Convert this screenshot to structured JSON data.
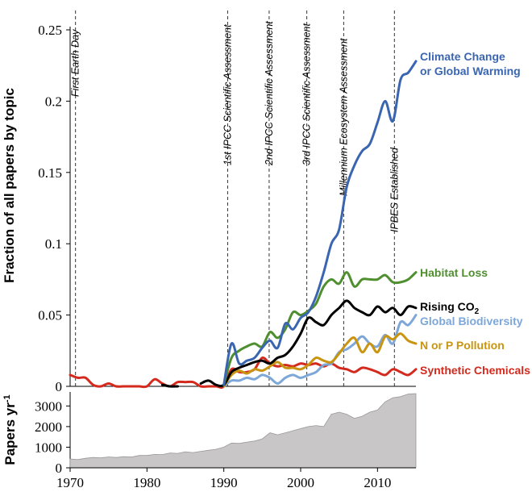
{
  "chart_data": [
    {
      "type": "line",
      "ylabel": "Fraction of all papers by topic",
      "xlim": [
        1970,
        2015
      ],
      "ylim": [
        0,
        0.25
      ],
      "yticks": [
        "0",
        "0.05",
        "0.1",
        "0.15",
        "0.2",
        "0.25"
      ],
      "grid": false,
      "events": [
        {
          "label": "First Earth Day",
          "year": 1970.7
        },
        {
          "label": "1st IPCC Scientific Assessment",
          "year": 1990.5
        },
        {
          "label": "2nd IPCC Scientific Assessment",
          "year": 1995.9
        },
        {
          "label": "3rd IPCC Scientific Assessment",
          "year": 2000.8
        },
        {
          "label": "Millennium Ecosystem Assessment",
          "year": 2005.6
        },
        {
          "label": "IPBES Established",
          "year": 2012.2
        }
      ],
      "x": [
        1990,
        1991,
        1992,
        1993,
        1994,
        1995,
        1996,
        1997,
        1998,
        1999,
        2000,
        2001,
        2002,
        2003,
        2004,
        2005,
        2006,
        2007,
        2008,
        2009,
        2010,
        2011,
        2012,
        2013,
        2014,
        2015
      ],
      "series": [
        {
          "name": "Climate Change or Global Warming",
          "label_lines": [
            "Climate Change",
            "or Global Warming"
          ],
          "color": "#3a65b0",
          "values": [
            0.001,
            0.03,
            0.016,
            0.018,
            0.02,
            0.027,
            0.032,
            0.027,
            0.044,
            0.04,
            0.048,
            0.052,
            0.063,
            0.08,
            0.1,
            0.11,
            0.14,
            0.155,
            0.165,
            0.17,
            0.185,
            0.2,
            0.186,
            0.215,
            0.22,
            0.228
          ]
        },
        {
          "name": "Habitat Loss",
          "color": "#4f8f2f",
          "values": [
            0.001,
            0.02,
            0.025,
            0.028,
            0.03,
            0.028,
            0.038,
            0.034,
            0.04,
            0.052,
            0.05,
            0.053,
            0.058,
            0.07,
            0.075,
            0.072,
            0.08,
            0.07,
            0.075,
            0.075,
            0.075,
            0.078,
            0.073,
            0.073,
            0.075,
            0.08
          ]
        },
        {
          "name": "Rising CO₂",
          "label_main": "Rising CO",
          "label_sub": "2",
          "color": "#000000",
          "x": [
            1982,
            1983,
            1984,
            1987,
            1988,
            1989,
            1990,
            1991,
            1992,
            1993,
            1994,
            1995,
            1996,
            1997,
            1998,
            1999,
            2000,
            2001,
            2002,
            2003,
            2004,
            2005,
            2006,
            2007,
            2008,
            2009,
            2010,
            2011,
            2012,
            2013,
            2014,
            2015
          ],
          "values": [
            0.001,
            0.0,
            0.0,
            0.002,
            0.004,
            0.001,
            0.001,
            0.01,
            0.013,
            0.015,
            0.017,
            0.018,
            0.016,
            0.02,
            0.022,
            0.028,
            0.037,
            0.048,
            0.045,
            0.043,
            0.05,
            0.055,
            0.06,
            0.055,
            0.052,
            0.05,
            0.056,
            0.052,
            0.055,
            0.05,
            0.056,
            0.055
          ]
        },
        {
          "name": "Global Biodiversity",
          "color": "#7da7d8",
          "values": [
            0.0,
            0.004,
            0.004,
            0.006,
            0.005,
            0.008,
            0.006,
            0.002,
            0.006,
            0.008,
            0.006,
            0.008,
            0.01,
            0.015,
            0.016,
            0.024,
            0.026,
            0.03,
            0.035,
            0.03,
            0.028,
            0.036,
            0.03,
            0.045,
            0.043,
            0.05
          ]
        },
        {
          "name": "N or P Pollution",
          "color": "#c9940f",
          "values": [
            0.0,
            0.008,
            0.011,
            0.009,
            0.012,
            0.011,
            0.014,
            0.017,
            0.013,
            0.013,
            0.012,
            0.015,
            0.02,
            0.018,
            0.017,
            0.023,
            0.03,
            0.034,
            0.024,
            0.03,
            0.024,
            0.035,
            0.033,
            0.037,
            0.032,
            0.03
          ]
        },
        {
          "name": "Synthetic Chemicals",
          "color": "#d42a1e",
          "x": [
            1970,
            1971,
            1972,
            1973,
            1974,
            1975,
            1976,
            1977,
            1978,
            1979,
            1980,
            1981,
            1982,
            1983,
            1984,
            1985,
            1986,
            1987,
            1988,
            1989,
            1990,
            1991,
            1992,
            1993,
            1994,
            1995,
            1996,
            1997,
            1998,
            1999,
            2000,
            2001,
            2002,
            2003,
            2004,
            2005,
            2006,
            2007,
            2008,
            2009,
            2010,
            2011,
            2012,
            2013,
            2014,
            2015
          ],
          "values": [
            0.008,
            0.006,
            0.006,
            0.001,
            0.0,
            0.002,
            0.0,
            0.0,
            0.0,
            0.0,
            0.0,
            0.005,
            0.002,
            0.0,
            0.003,
            0.003,
            0.003,
            0.0,
            0.0,
            0.0,
            0.0,
            0.012,
            0.01,
            0.01,
            0.012,
            0.02,
            0.016,
            0.014,
            0.015,
            0.014,
            0.016,
            0.015,
            0.016,
            0.014,
            0.016,
            0.013,
            0.012,
            0.01,
            0.013,
            0.012,
            0.01,
            0.008,
            0.012,
            0.01,
            0.008,
            0.012
          ]
        }
      ]
    },
    {
      "type": "area",
      "ylabel_main": "Papers yr",
      "ylabel_sup": "-1",
      "xlim": [
        1970,
        2015
      ],
      "ylim": [
        0,
        3600
      ],
      "xticks": [
        "1970",
        "1980",
        "1990",
        "2000",
        "2010"
      ],
      "yticks": [
        "0",
        "1000",
        "2000",
        "3000"
      ],
      "color": "#c8c6c6",
      "grid": false,
      "x": [
        1970,
        1971,
        1972,
        1973,
        1974,
        1975,
        1976,
        1977,
        1978,
        1979,
        1980,
        1981,
        1982,
        1983,
        1984,
        1985,
        1986,
        1987,
        1988,
        1989,
        1990,
        1991,
        1992,
        1993,
        1994,
        1995,
        1996,
        1997,
        1998,
        1999,
        2000,
        2001,
        2002,
        2003,
        2004,
        2005,
        2006,
        2007,
        2008,
        2009,
        2010,
        2011,
        2012,
        2013,
        2014,
        2015
      ],
      "values": [
        430,
        400,
        460,
        500,
        480,
        530,
        500,
        540,
        520,
        600,
        600,
        650,
        640,
        720,
        700,
        780,
        740,
        800,
        850,
        900,
        1000,
        1200,
        1180,
        1250,
        1300,
        1400,
        1700,
        1600,
        1700,
        1800,
        1900,
        2000,
        2050,
        2000,
        2600,
        2700,
        2600,
        2400,
        2500,
        2700,
        2800,
        3200,
        3400,
        3450,
        3580,
        3600
      ]
    }
  ]
}
